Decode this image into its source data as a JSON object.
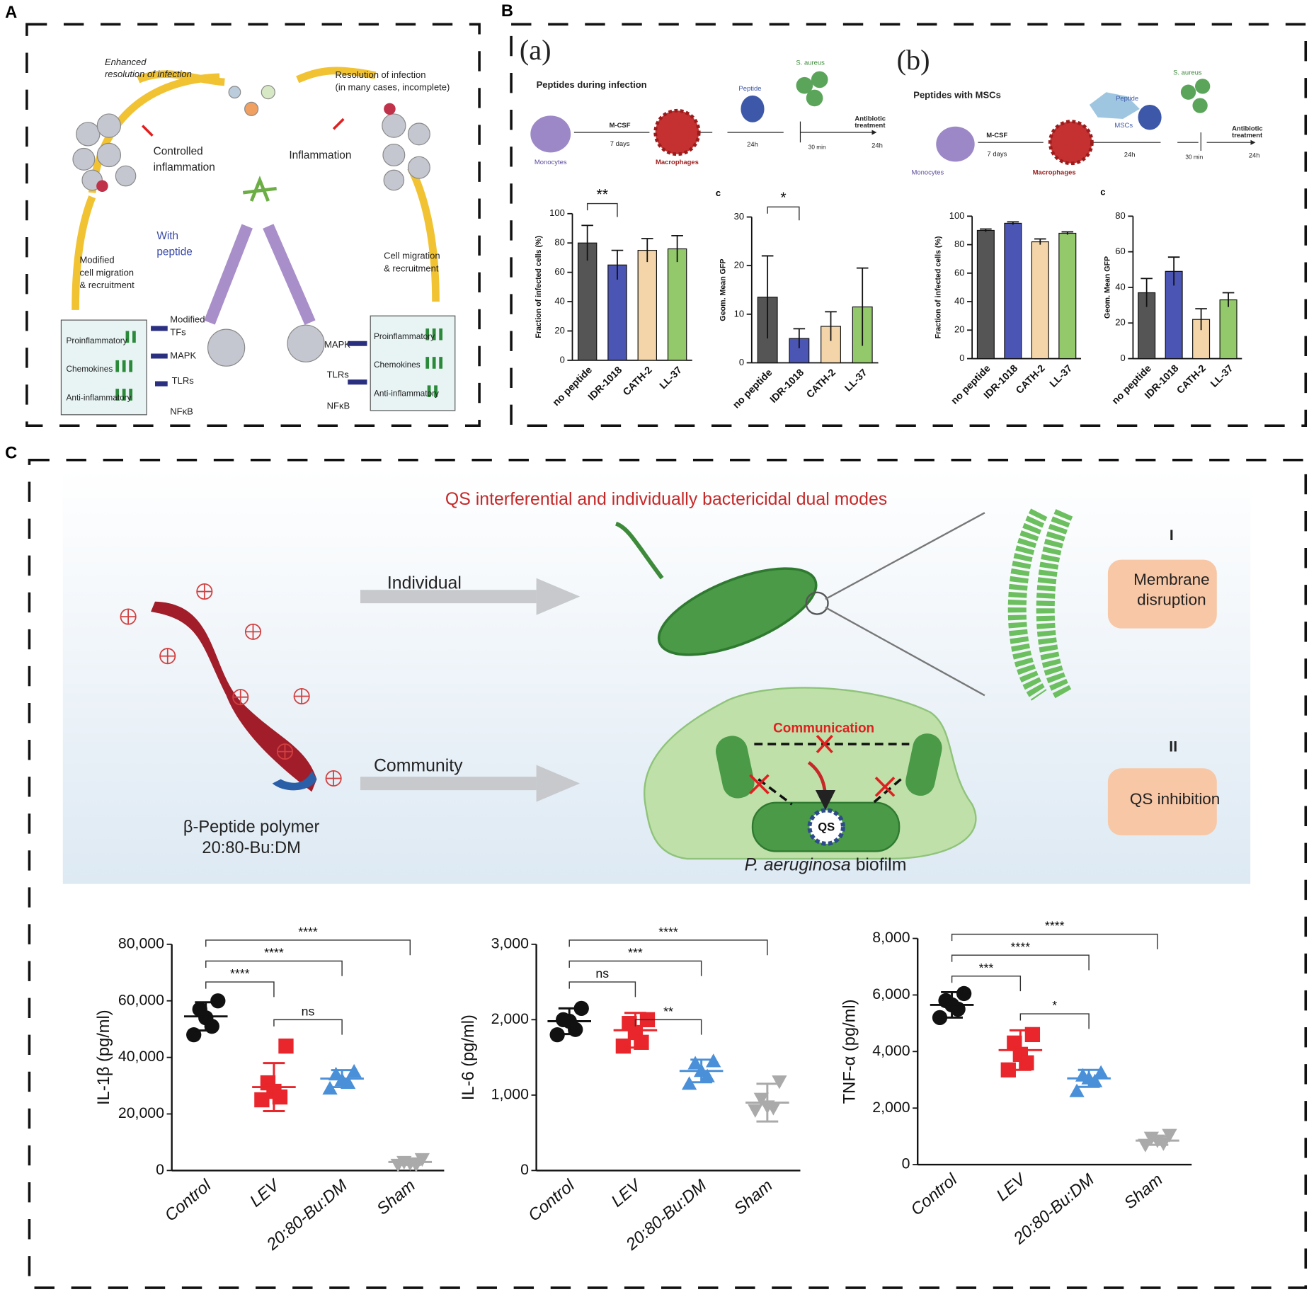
{
  "panel_labels": [
    "A",
    "B",
    "C"
  ],
  "diagram_a": {
    "enhanced": [
      "Enhanced",
      "resolution of infection"
    ],
    "resolution": [
      "Resolution of infection",
      "(in many cases, incomplete)"
    ],
    "controlled": [
      "Controlled",
      "inflammation"
    ],
    "inflammation": "Inflammation",
    "with_peptide": [
      "With",
      "peptide"
    ],
    "modified_migration": [
      "Modified",
      "cell migration",
      "& recruitment"
    ],
    "cell_migration": [
      "Cell migration",
      "& recruitment"
    ],
    "left_signals": [
      "Modified",
      "TFs",
      "MAPK",
      "TLRs",
      "NFκB"
    ],
    "right_signals": [
      "MAPK",
      "TLRs",
      "NFκB"
    ],
    "left_box": [
      "Proinflammatory",
      "Chemokines",
      "Anti-inflammatory"
    ],
    "right_box": [
      "Proinflammatory",
      "Chemokines",
      "Anti-inflammatory"
    ]
  },
  "diagram_b": {
    "a": {
      "label": "(a)",
      "title": "Peptides during infection",
      "monocytes": "Monocytes",
      "mcsf": "M-CSF",
      "days": "7 days",
      "macrophages": "Macrophages",
      "peptide": "Peptide",
      "bacteria": "S. aureus",
      "t1": "24h",
      "t2": "30 min",
      "antibiotic": [
        "Antibiotic",
        "treatment"
      ],
      "t3": "24h"
    },
    "b": {
      "label": "(b)",
      "title": "Peptides with MSCs",
      "monocytes": "Monocytes",
      "mcsf": "M-CSF",
      "days": "7 days",
      "macrophages": "Macrophages",
      "mscs": "MSCs",
      "peptide": "Peptide",
      "bacteria": "S. aureus",
      "t1": "24h",
      "t2": "30 min",
      "antibiotic": [
        "Antibiotic",
        "treatment"
      ],
      "t3": "24h"
    }
  },
  "diagram_c": {
    "title": "QS interferential and individually bactericidal dual modes",
    "individual": "Individual",
    "community": "Community",
    "polymer": [
      "β-Peptide polymer",
      "20:80-Bu:DM"
    ],
    "communication": "Communication",
    "qs": "QS",
    "biofilm_species": "P. aeruginosa",
    "biofilm": "biofilm",
    "mode1": "I",
    "mode1_label": [
      "Membrane",
      "disruption"
    ],
    "mode2": "II",
    "mode2_label": "QS inhibition"
  },
  "chart_data": [
    {
      "type": "bar",
      "ylabel": "Fraction of infected cells (%)",
      "categories": [
        "no peptide",
        "IDR-1018",
        "CATH-2",
        "LL-37"
      ],
      "values": [
        80,
        65,
        75,
        76
      ],
      "errors": [
        12,
        10,
        8,
        9
      ],
      "colors": [
        "#555555",
        "#4b55b3",
        "#f3d5a9",
        "#93c86b"
      ],
      "ylim": [
        0,
        100
      ],
      "yticks": [
        0,
        20,
        40,
        60,
        80,
        100
      ],
      "significance": [
        {
          "pair": [
            0,
            1
          ],
          "label": "**"
        }
      ]
    },
    {
      "type": "bar",
      "letter": "c",
      "ylabel": "Geom. Mean GFP",
      "categories": [
        "no peptide",
        "IDR-1018",
        "CATH-2",
        "LL-37"
      ],
      "values": [
        13.5,
        5,
        7.5,
        11.5
      ],
      "errors": [
        8.5,
        2,
        3,
        8
      ],
      "colors": [
        "#555555",
        "#4b55b3",
        "#f3d5a9",
        "#93c86b"
      ],
      "ylim": [
        0,
        30
      ],
      "yticks": [
        0,
        10,
        20,
        30
      ],
      "significance": [
        {
          "pair": [
            0,
            1
          ],
          "label": "*"
        }
      ]
    },
    {
      "type": "bar",
      "ylabel": "Fraction of infected cells (%)",
      "categories": [
        "no peptide",
        "IDR-1018",
        "CATH-2",
        "LL-37"
      ],
      "values": [
        90,
        95,
        82,
        88
      ],
      "errors": [
        1,
        1,
        2,
        1
      ],
      "colors": [
        "#555555",
        "#4b55b3",
        "#f3d5a9",
        "#93c86b"
      ],
      "ylim": [
        0,
        100
      ],
      "yticks": [
        0,
        20,
        40,
        60,
        80,
        100
      ]
    },
    {
      "type": "bar",
      "letter": "c",
      "ylabel": "Geom. Mean GFP",
      "categories": [
        "no peptide",
        "IDR-1018",
        "CATH-2",
        "LL-37"
      ],
      "values": [
        37,
        49,
        22,
        33
      ],
      "errors": [
        8,
        8,
        6,
        4
      ],
      "colors": [
        "#555555",
        "#4b55b3",
        "#f3d5a9",
        "#93c86b"
      ],
      "ylim": [
        0,
        80
      ],
      "yticks": [
        0,
        20,
        40,
        60,
        80
      ]
    },
    {
      "type": "dot",
      "ylabel": "IL-1β (pg/ml)",
      "categories": [
        "Control",
        "LEV",
        "20:80-Bu:DM",
        "Sham"
      ],
      "colors": [
        "#111111",
        "#e8262b",
        "#4a90d9",
        "#aaaaaa"
      ],
      "points": [
        [
          60000,
          57000,
          54000,
          51000,
          48000
        ],
        [
          44000,
          31000,
          28000,
          26000,
          25000
        ],
        [
          35000,
          34000,
          32000,
          31000,
          29000
        ],
        [
          4000,
          3000,
          2500,
          2000,
          2000
        ]
      ],
      "means": [
        54500,
        29500,
        32500,
        3000
      ],
      "errors": [
        5000,
        8500,
        3000,
        1000
      ],
      "ylim": [
        0,
        80000
      ],
      "yticks": [
        0,
        {
          "value": 20000,
          "label": "20,000"
        },
        {
          "value": 40000,
          "label": "40,000"
        },
        {
          "value": 60000,
          "label": "60,000"
        },
        {
          "value": 80000,
          "label": "80,000"
        }
      ],
      "significance": [
        {
          "pair": [
            0,
            1
          ],
          "label": "****"
        },
        {
          "pair": [
            0,
            2
          ],
          "label": "****"
        },
        {
          "pair": [
            0,
            3
          ],
          "label": "****"
        },
        {
          "pair": [
            1,
            2
          ],
          "label": "ns"
        }
      ]
    },
    {
      "type": "dot",
      "ylabel": "IL-6 (pg/ml)",
      "categories": [
        "Control",
        "LEV",
        "20:80-Bu:DM",
        "Sham"
      ],
      "colors": [
        "#111111",
        "#e8262b",
        "#4a90d9",
        "#aaaaaa"
      ],
      "points": [
        [
          2150,
          2000,
          1980,
          1870,
          1800
        ],
        [
          2000,
          1950,
          1830,
          1700,
          1650
        ],
        [
          1450,
          1420,
          1320,
          1250,
          1150
        ],
        [
          1180,
          950,
          850,
          830,
          800
        ]
      ],
      "means": [
        1980,
        1860,
        1320,
        900
      ],
      "errors": [
        170,
        230,
        150,
        250
      ],
      "ylim": [
        0,
        3000
      ],
      "yticks": [
        0,
        {
          "value": 1000,
          "label": "1,000"
        },
        {
          "value": 2000,
          "label": "2,000"
        },
        {
          "value": 3000,
          "label": "3,000"
        }
      ],
      "significance": [
        {
          "pair": [
            0,
            1
          ],
          "label": "ns"
        },
        {
          "pair": [
            0,
            2
          ],
          "label": "***"
        },
        {
          "pair": [
            0,
            3
          ],
          "label": "****"
        },
        {
          "pair": [
            1,
            2
          ],
          "label": "**"
        }
      ]
    },
    {
      "type": "dot",
      "ylabel": "TNF-α (pg/ml)",
      "categories": [
        "Control",
        "LEV",
        "20:80-Bu:DM",
        "Sham"
      ],
      "colors": [
        "#111111",
        "#e8262b",
        "#4a90d9",
        "#aaaaaa"
      ],
      "points": [
        [
          6050,
          5800,
          5650,
          5500,
          5200
        ],
        [
          4600,
          4300,
          3900,
          3600,
          3350
        ],
        [
          3250,
          3150,
          3050,
          2950,
          2600
        ],
        [
          1050,
          950,
          850,
          750,
          700
        ]
      ],
      "means": [
        5650,
        4050,
        3050,
        850
      ],
      "errors": [
        450,
        700,
        300,
        150
      ],
      "ylim": [
        0,
        8000
      ],
      "yticks": [
        0,
        {
          "value": 2000,
          "label": "2,000"
        },
        {
          "value": 4000,
          "label": "4,000"
        },
        {
          "value": 6000,
          "label": "6,000"
        },
        {
          "value": 8000,
          "label": "8,000"
        }
      ],
      "significance": [
        {
          "pair": [
            0,
            1
          ],
          "label": "***"
        },
        {
          "pair": [
            0,
            2
          ],
          "label": "****"
        },
        {
          "pair": [
            0,
            3
          ],
          "label": "****"
        },
        {
          "pair": [
            1,
            2
          ],
          "label": "*"
        }
      ]
    }
  ]
}
